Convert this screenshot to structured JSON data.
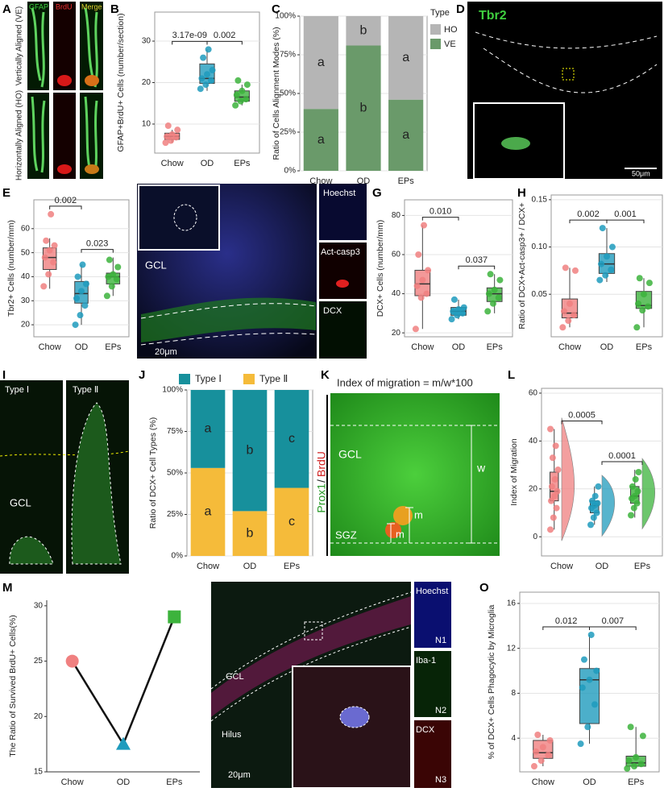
{
  "chart_data": [
    {
      "panel": "B",
      "type": "box",
      "ylabel": "GFAP+BrdU+ Cells (number/section)",
      "categories": [
        "Chow",
        "OD",
        "EPs"
      ],
      "colors": [
        "#f08080",
        "#1f9bbd",
        "#3cb33c"
      ],
      "ylim": [
        3,
        37
      ],
      "yticks": [
        10,
        20,
        30
      ],
      "grid": true,
      "comparisons": [
        "3.17e-09",
        "0.002"
      ],
      "boxes": [
        {
          "low": 5.5,
          "q1": 6.3,
          "median": 7,
          "q3": 7.8,
          "high": 8.6,
          "points": [
            5.5,
            6.0,
            6.8,
            7.0,
            7.5,
            8.6,
            9.6
          ]
        },
        {
          "low": 18,
          "q1": 19.8,
          "median": 21,
          "q3": 24.5,
          "high": 28,
          "points": [
            18.5,
            19.5,
            20.5,
            21,
            22,
            23,
            26,
            28
          ]
        },
        {
          "low": 14.5,
          "q1": 15.5,
          "median": 16.5,
          "q3": 18,
          "high": 19.5,
          "points": [
            14.5,
            15.5,
            16,
            17,
            18,
            19.5,
            20.5
          ]
        }
      ]
    },
    {
      "panel": "C",
      "type": "stacked_bar",
      "ylabel": "Ratio of Cells Alignment Modes (%)",
      "categories": [
        "Chow",
        "OD",
        "EPs"
      ],
      "ylim": [
        0,
        100
      ],
      "yticks": [
        {
          "value": 0,
          "label": "0%"
        },
        {
          "value": 25,
          "label": "25%"
        },
        {
          "value": 50,
          "label": "50%"
        },
        {
          "value": 75,
          "label": "75%"
        },
        {
          "value": 100,
          "label": "100%"
        }
      ],
      "grid": true,
      "legend": "right",
      "legend_title": "Type",
      "series": [
        {
          "name": "VE",
          "color": "#6a9a6a",
          "values": [
            40,
            81,
            46
          ],
          "segment_labels": [
            "a",
            "b",
            "a"
          ]
        },
        {
          "name": "HO",
          "color": "#b5b5b5",
          "values": [
            60,
            19,
            54
          ],
          "segment_labels": [
            "a",
            "b",
            "a"
          ]
        }
      ]
    },
    {
      "panel": "E",
      "type": "box",
      "ylabel": "Tbr2+ Cells (number/mm)",
      "categories": [
        "Chow",
        "OD",
        "EPs"
      ],
      "colors": [
        "#f08080",
        "#1f9bbd",
        "#3cb33c"
      ],
      "ylim": [
        15,
        72
      ],
      "yticks": [
        20,
        30,
        40,
        50,
        60
      ],
      "grid": true,
      "comparisons": [
        "0.002",
        "0.023"
      ],
      "boxes": [
        {
          "low": 35,
          "q1": 43,
          "median": 48,
          "q3": 52,
          "high": 56,
          "points": [
            36,
            41,
            46,
            48,
            51,
            53,
            55,
            66
          ]
        },
        {
          "low": 20,
          "q1": 29,
          "median": 33,
          "q3": 38,
          "high": 45,
          "points": [
            20,
            24,
            28,
            31,
            34,
            37,
            40,
            45
          ]
        },
        {
          "low": 32,
          "q1": 37,
          "median": 40,
          "q3": 41.5,
          "high": 48,
          "points": [
            32,
            36,
            39,
            40,
            41,
            44,
            47
          ]
        }
      ]
    },
    {
      "panel": "G",
      "type": "box",
      "ylabel": "DCX+ Cells (number/mm)",
      "categories": [
        "Chow",
        "OD",
        "EPs"
      ],
      "colors": [
        "#f08080",
        "#1f9bbd",
        "#3cb33c"
      ],
      "ylim": [
        18,
        88
      ],
      "yticks": [
        20,
        40,
        60,
        80
      ],
      "grid": true,
      "comparisons": [
        "0.010",
        "0.037"
      ],
      "boxes": [
        {
          "low": 22,
          "q1": 39,
          "median": 45,
          "q3": 52,
          "high": 75,
          "points": [
            22,
            38,
            40,
            44,
            47,
            52,
            60,
            75
          ]
        },
        {
          "low": 27,
          "q1": 29,
          "median": 31,
          "q3": 33,
          "high": 37,
          "points": [
            27,
            29,
            30,
            31,
            32,
            33,
            37
          ]
        },
        {
          "low": 30,
          "q1": 36,
          "median": 40,
          "q3": 43,
          "high": 50,
          "points": [
            31,
            35,
            38,
            40,
            42,
            47,
            50
          ]
        }
      ]
    },
    {
      "panel": "H",
      "type": "box",
      "ylabel": "Ratio of DCX+Act-casp3+ / DCX+",
      "categories": [
        "Chow",
        "OD",
        "EPs"
      ],
      "colors": [
        "#f08080",
        "#1f9bbd",
        "#3cb33c"
      ],
      "ylim": [
        0.005,
        0.155
      ],
      "yticks": [
        0.05,
        {
          "value": 0.1,
          "label": "0.10"
        },
        0.15
      ],
      "grid": true,
      "comparisons": [
        "0.002",
        "0.001"
      ],
      "boxes": [
        {
          "low": 0.015,
          "q1": 0.025,
          "median": 0.03,
          "q3": 0.045,
          "high": 0.078,
          "points": [
            0.015,
            0.022,
            0.028,
            0.032,
            0.04,
            0.075,
            0.078
          ]
        },
        {
          "low": 0.063,
          "q1": 0.072,
          "median": 0.082,
          "q3": 0.093,
          "high": 0.12,
          "points": [
            0.065,
            0.07,
            0.076,
            0.082,
            0.09,
            0.1,
            0.12
          ]
        },
        {
          "low": 0.015,
          "q1": 0.035,
          "median": 0.038,
          "q3": 0.053,
          "high": 0.067,
          "points": [
            0.015,
            0.033,
            0.037,
            0.04,
            0.05,
            0.062,
            0.067
          ]
        }
      ]
    },
    {
      "panel": "J",
      "type": "stacked_bar",
      "ylabel": "Ratio of DCX+ Cell Types (%)",
      "categories": [
        "Chow",
        "OD",
        "EPs"
      ],
      "ylim": [
        0,
        100
      ],
      "yticks": [
        {
          "value": 0,
          "label": "0%"
        },
        {
          "value": 25,
          "label": "25%"
        },
        {
          "value": 50,
          "label": "50%"
        },
        {
          "value": 75,
          "label": "75%"
        },
        {
          "value": 100,
          "label": "100%"
        }
      ],
      "grid": true,
      "legend": "top",
      "series": [
        {
          "name": "Type Ⅱ",
          "color": "#f5bb3a",
          "values": [
            53,
            27,
            41
          ],
          "segment_labels": [
            "a",
            "b",
            "c"
          ]
        },
        {
          "name": "Type Ⅰ",
          "color": "#17909c",
          "values": [
            47,
            73,
            59
          ],
          "segment_labels": [
            "a",
            "b",
            "c"
          ]
        }
      ]
    },
    {
      "panel": "L",
      "type": "violin",
      "ylabel": "Index of Migration",
      "categories": [
        "Chow",
        "OD",
        "EPs"
      ],
      "colors": [
        "#f08080",
        "#1f9bbd",
        "#3cb33c"
      ],
      "ylim": [
        -8,
        62
      ],
      "yticks": [
        0,
        20,
        40,
        60
      ],
      "grid": true,
      "comparisons": [
        "0.0005",
        "0.0001"
      ],
      "boxes": [
        {
          "low": 3,
          "q1": 15,
          "median": 19,
          "q3": 27,
          "high": 45,
          "points": [
            3,
            8,
            12,
            15,
            17,
            19,
            21,
            24,
            28,
            33,
            38,
            45
          ]
        },
        {
          "low": 5,
          "q1": 10,
          "median": 13,
          "q3": 15,
          "high": 21,
          "points": [
            5,
            8,
            10,
            12,
            13,
            14,
            15,
            17,
            21
          ]
        },
        {
          "low": 8,
          "q1": 14,
          "median": 17,
          "q3": 21,
          "high": 28,
          "points": [
            9,
            12,
            14,
            16,
            17,
            19,
            21,
            24,
            27
          ]
        }
      ]
    },
    {
      "panel": "M",
      "type": "line",
      "ylabel": "The Ratio of Survived BrdU+ Cells(%)",
      "categories": [
        "Chow",
        "OD",
        "EPs"
      ],
      "values": [
        25,
        17.5,
        29
      ],
      "colors": [
        "#f08080",
        "#1f9bbd",
        "#3cb33c"
      ],
      "markers": [
        "circle",
        "triangle",
        "square"
      ],
      "ylim": [
        15,
        30.5
      ],
      "yticks": [
        15,
        20,
        25,
        30
      ],
      "grid": false
    },
    {
      "panel": "O",
      "type": "box",
      "ylabel": "% of DCX+ Cells Phagocytic by Microglia",
      "categories": [
        "Chow",
        "OD",
        "EPs"
      ],
      "colors": [
        "#f08080",
        "#1f9bbd",
        "#3cb33c"
      ],
      "ylim": [
        1,
        17
      ],
      "yticks": [
        4,
        8,
        12,
        16
      ],
      "grid": true,
      "comparisons": [
        "0.012",
        "0.007"
      ],
      "boxes": [
        {
          "low": 1.5,
          "q1": 2.2,
          "median": 2.7,
          "q3": 3.8,
          "high": 4.3,
          "points": [
            1.5,
            2,
            2.5,
            2.8,
            3.2,
            3.8,
            4.3
          ]
        },
        {
          "low": 3.5,
          "q1": 5.3,
          "median": 9.2,
          "q3": 10.2,
          "high": 13.2,
          "points": [
            3.5,
            5,
            7,
            8.5,
            9.2,
            10,
            11,
            13.2
          ]
        },
        {
          "low": 1.3,
          "q1": 1.5,
          "median": 1.8,
          "q3": 2.4,
          "high": 5,
          "points": [
            1.3,
            1.5,
            1.7,
            2,
            2.3,
            4.2,
            5
          ]
        }
      ]
    }
  ],
  "image_panels": [
    {
      "panel": "A",
      "texts": [
        "GFAP",
        "BrdU",
        "Merge",
        "Vertically Aligned (VE)",
        "Horizontally Aligned (HO)"
      ]
    },
    {
      "panel": "D",
      "texts": [
        "Tbr2",
        "50μm"
      ]
    },
    {
      "panel": "F",
      "texts": [
        "GCL",
        "20μm",
        "Hoechst",
        "Act-casp3",
        "DCX"
      ]
    },
    {
      "panel": "I",
      "texts": [
        "Type Ⅰ",
        "Type Ⅱ",
        "GCL"
      ]
    },
    {
      "panel": "K",
      "texts": [
        "Index of migration = m/w*100",
        "GCL",
        "SGZ",
        "Prox1",
        "/",
        "BrdU",
        "w",
        "m",
        "m"
      ]
    },
    {
      "panel": "N",
      "texts": [
        "GCL",
        "Hilus",
        "20μm",
        "Hoechst",
        "Iba-1",
        "DCX",
        "N1",
        "N2",
        "N3"
      ]
    }
  ]
}
